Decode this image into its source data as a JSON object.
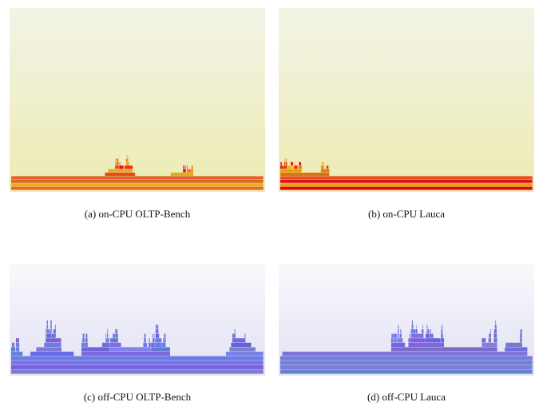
{
  "panels": [
    {
      "caption": "(a) on-CPU OLTP-Bench"
    },
    {
      "caption": "(b) on-CPU Lauca"
    },
    {
      "caption": "(c) off-CPU OLTP-Bench"
    },
    {
      "caption": "(d) off-CPU Lauca"
    }
  ]
}
